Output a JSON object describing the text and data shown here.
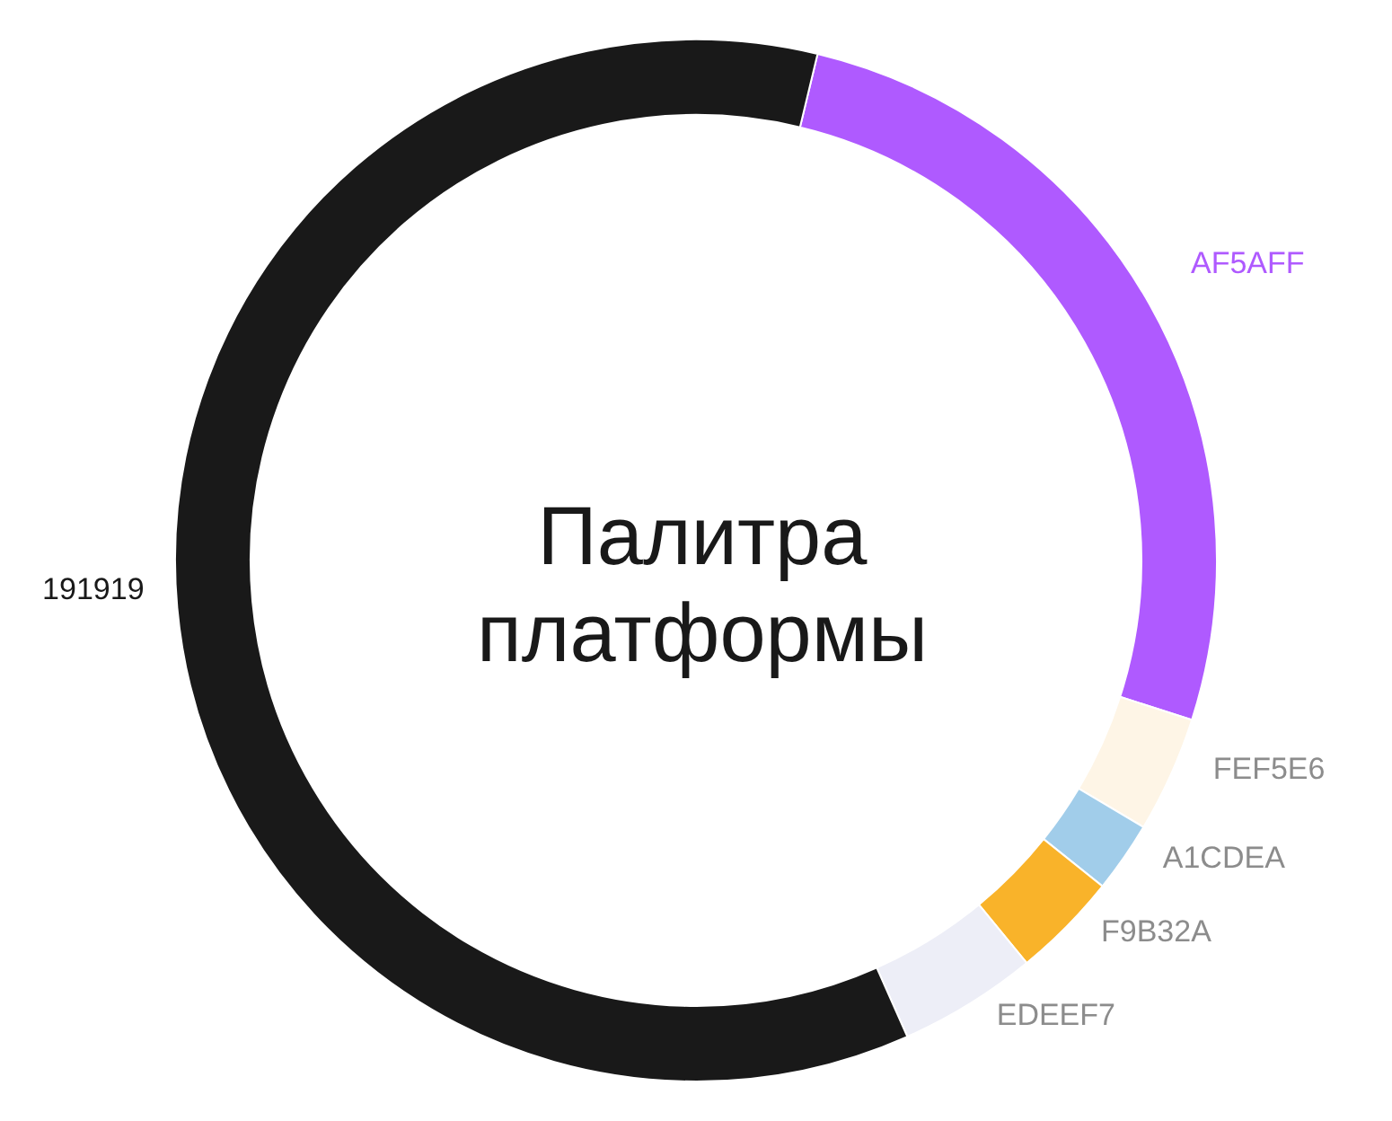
{
  "chart_data": {
    "type": "donut",
    "title": "Палитра платформы",
    "categories": [
      "AF5AFF",
      "FEF5E6",
      "A1CDEA",
      "F9B32A",
      "EDEEF7",
      "191919"
    ],
    "values": [
      26.2,
      3.6,
      2.2,
      3.3,
      4.3,
      60.4
    ],
    "colors": [
      "#af5aff",
      "#fef5e6",
      "#a1cdea",
      "#f9b32a",
      "#edeef7",
      "#191919"
    ]
  }
}
